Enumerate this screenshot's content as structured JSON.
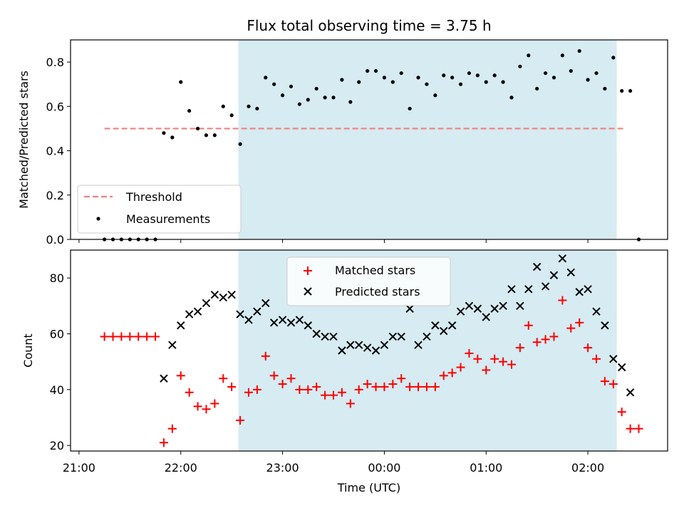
{
  "chart_data": {
    "title": "Flux total observing time = 3.75 h",
    "xlabel": "Time (UTC)",
    "x_ticks": [
      "21:00",
      "22:00",
      "23:00",
      "00:00",
      "01:00",
      "02:00"
    ],
    "shaded_span": {
      "start": "22:34",
      "end": "02:17",
      "color": "#add8e6"
    },
    "panels": [
      {
        "type": "scatter",
        "ylabel": "Matched/Predicted stars",
        "ylim": [
          0,
          0.9
        ],
        "yticks": [
          "0.0",
          "0.2",
          "0.4",
          "0.6",
          "0.8"
        ],
        "legend_position": "lower-left",
        "threshold": {
          "name": "Threshold",
          "value": 0.5,
          "color": "#f08080",
          "from": "21:15",
          "to": "02:22"
        },
        "measurements": {
          "name": "Measurements",
          "color": "#000000",
          "points": [
            [
              "21:15",
              0.0
            ],
            [
              "21:20",
              0.0
            ],
            [
              "21:25",
              0.0
            ],
            [
              "21:30",
              0.0
            ],
            [
              "21:35",
              0.0
            ],
            [
              "21:40",
              0.0
            ],
            [
              "21:45",
              0.0
            ],
            [
              "21:50",
              0.48
            ],
            [
              "21:55",
              0.46
            ],
            [
              "22:00",
              0.71
            ],
            [
              "22:05",
              0.58
            ],
            [
              "22:10",
              0.5
            ],
            [
              "22:15",
              0.47
            ],
            [
              "22:20",
              0.47
            ],
            [
              "22:25",
              0.6
            ],
            [
              "22:30",
              0.56
            ],
            [
              "22:35",
              0.43
            ],
            [
              "22:40",
              0.6
            ],
            [
              "22:45",
              0.59
            ],
            [
              "22:50",
              0.73
            ],
            [
              "22:55",
              0.7
            ],
            [
              "23:00",
              0.65
            ],
            [
              "23:05",
              0.69
            ],
            [
              "23:10",
              0.61
            ],
            [
              "23:15",
              0.63
            ],
            [
              "23:20",
              0.68
            ],
            [
              "23:25",
              0.64
            ],
            [
              "23:30",
              0.64
            ],
            [
              "23:35",
              0.72
            ],
            [
              "23:40",
              0.62
            ],
            [
              "23:45",
              0.71
            ],
            [
              "23:50",
              0.76
            ],
            [
              "23:55",
              0.76
            ],
            [
              "00:00",
              0.73
            ],
            [
              "00:05",
              0.71
            ],
            [
              "00:10",
              0.75
            ],
            [
              "00:15",
              0.59
            ],
            [
              "00:20",
              0.73
            ],
            [
              "00:25",
              0.7
            ],
            [
              "00:30",
              0.65
            ],
            [
              "00:35",
              0.74
            ],
            [
              "00:40",
              0.73
            ],
            [
              "00:45",
              0.7
            ],
            [
              "00:50",
              0.75
            ],
            [
              "00:55",
              0.74
            ],
            [
              "01:00",
              0.71
            ],
            [
              "01:05",
              0.74
            ],
            [
              "01:10",
              0.71
            ],
            [
              "01:15",
              0.64
            ],
            [
              "01:20",
              0.78
            ],
            [
              "01:25",
              0.83
            ],
            [
              "01:30",
              0.68
            ],
            [
              "01:35",
              0.75
            ],
            [
              "01:40",
              0.73
            ],
            [
              "01:45",
              0.83
            ],
            [
              "01:50",
              0.76
            ],
            [
              "01:55",
              0.85
            ],
            [
              "02:00",
              0.72
            ],
            [
              "02:05",
              0.75
            ],
            [
              "02:10",
              0.68
            ],
            [
              "02:15",
              0.82
            ],
            [
              "02:20",
              0.67
            ],
            [
              "02:25",
              0.67
            ],
            [
              "02:30",
              0.0
            ]
          ]
        }
      },
      {
        "type": "scatter",
        "ylabel": "Count",
        "ylim": [
          18,
          90
        ],
        "yticks": [
          "20",
          "40",
          "60",
          "80"
        ],
        "legend_position": "upper-center",
        "series": [
          {
            "name": "Matched stars",
            "marker": "+",
            "color": "#ff0000",
            "points": [
              [
                "21:15",
                59
              ],
              [
                "21:20",
                59
              ],
              [
                "21:25",
                59
              ],
              [
                "21:30",
                59
              ],
              [
                "21:35",
                59
              ],
              [
                "21:40",
                59
              ],
              [
                "21:45",
                59
              ],
              [
                "21:50",
                21
              ],
              [
                "21:55",
                26
              ],
              [
                "22:00",
                45
              ],
              [
                "22:05",
                39
              ],
              [
                "22:10",
                34
              ],
              [
                "22:15",
                33
              ],
              [
                "22:20",
                35
              ],
              [
                "22:25",
                44
              ],
              [
                "22:30",
                41
              ],
              [
                "22:35",
                29
              ],
              [
                "22:40",
                39
              ],
              [
                "22:45",
                40
              ],
              [
                "22:50",
                52
              ],
              [
                "22:55",
                45
              ],
              [
                "23:00",
                42
              ],
              [
                "23:05",
                44
              ],
              [
                "23:10",
                40
              ],
              [
                "23:15",
                40
              ],
              [
                "23:20",
                41
              ],
              [
                "23:25",
                38
              ],
              [
                "23:30",
                38
              ],
              [
                "23:35",
                39
              ],
              [
                "23:40",
                35
              ],
              [
                "23:45",
                40
              ],
              [
                "23:50",
                42
              ],
              [
                "23:55",
                41
              ],
              [
                "00:00",
                41
              ],
              [
                "00:05",
                42
              ],
              [
                "00:10",
                44
              ],
              [
                "00:15",
                41
              ],
              [
                "00:20",
                41
              ],
              [
                "00:25",
                41
              ],
              [
                "00:30",
                41
              ],
              [
                "00:35",
                45
              ],
              [
                "00:40",
                46
              ],
              [
                "00:45",
                48
              ],
              [
                "00:50",
                53
              ],
              [
                "00:55",
                51
              ],
              [
                "01:00",
                47
              ],
              [
                "01:05",
                51
              ],
              [
                "01:10",
                50
              ],
              [
                "01:15",
                49
              ],
              [
                "01:20",
                55
              ],
              [
                "01:25",
                63
              ],
              [
                "01:30",
                57
              ],
              [
                "01:35",
                58
              ],
              [
                "01:40",
                59
              ],
              [
                "01:45",
                72
              ],
              [
                "01:50",
                62
              ],
              [
                "01:55",
                64
              ],
              [
                "02:00",
                55
              ],
              [
                "02:05",
                51
              ],
              [
                "02:10",
                43
              ],
              [
                "02:15",
                42
              ],
              [
                "02:20",
                32
              ],
              [
                "02:25",
                26
              ],
              [
                "02:30",
                26
              ]
            ]
          },
          {
            "name": "Predicted stars",
            "marker": "x",
            "color": "#000000",
            "points": [
              [
                "21:50",
                44
              ],
              [
                "21:55",
                56
              ],
              [
                "22:00",
                63
              ],
              [
                "22:05",
                67
              ],
              [
                "22:10",
                68
              ],
              [
                "22:15",
                71
              ],
              [
                "22:20",
                74
              ],
              [
                "22:25",
                73
              ],
              [
                "22:30",
                74
              ],
              [
                "22:35",
                67
              ],
              [
                "22:40",
                65
              ],
              [
                "22:45",
                68
              ],
              [
                "22:50",
                71
              ],
              [
                "22:55",
                64
              ],
              [
                "23:00",
                65
              ],
              [
                "23:05",
                64
              ],
              [
                "23:10",
                65
              ],
              [
                "23:15",
                63
              ],
              [
                "23:20",
                60
              ],
              [
                "23:25",
                59
              ],
              [
                "23:30",
                59
              ],
              [
                "23:35",
                54
              ],
              [
                "23:40",
                56
              ],
              [
                "23:45",
                56
              ],
              [
                "23:50",
                55
              ],
              [
                "23:55",
                54
              ],
              [
                "00:00",
                56
              ],
              [
                "00:05",
                59
              ],
              [
                "00:10",
                59
              ],
              [
                "00:15",
                69
              ],
              [
                "00:20",
                56
              ],
              [
                "00:25",
                59
              ],
              [
                "00:30",
                63
              ],
              [
                "00:35",
                61
              ],
              [
                "00:40",
                63
              ],
              [
                "00:45",
                68
              ],
              [
                "00:50",
                70
              ],
              [
                "00:55",
                69
              ],
              [
                "01:00",
                66
              ],
              [
                "01:05",
                69
              ],
              [
                "01:10",
                70
              ],
              [
                "01:15",
                76
              ],
              [
                "01:20",
                70
              ],
              [
                "01:25",
                76
              ],
              [
                "01:30",
                84
              ],
              [
                "01:35",
                77
              ],
              [
                "01:40",
                81
              ],
              [
                "01:45",
                87
              ],
              [
                "01:50",
                82
              ],
              [
                "01:55",
                75
              ],
              [
                "02:00",
                76
              ],
              [
                "02:05",
                68
              ],
              [
                "02:10",
                63
              ],
              [
                "02:15",
                51
              ],
              [
                "02:20",
                48
              ],
              [
                "02:25",
                39
              ]
            ]
          }
        ]
      }
    ]
  }
}
